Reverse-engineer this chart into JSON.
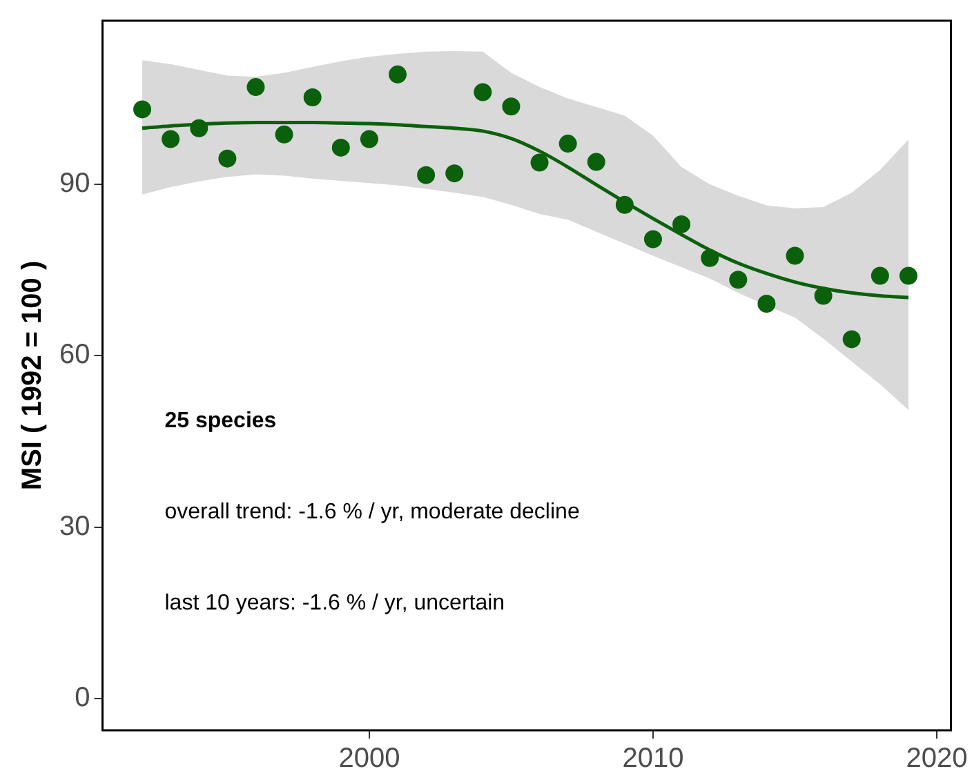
{
  "chart_data": {
    "type": "scatter",
    "ylabel": "MSI ( 1992 = 100 )",
    "x": [
      1992,
      1993,
      1994,
      1995,
      1996,
      1997,
      1998,
      1999,
      2000,
      2001,
      2002,
      2003,
      2004,
      2005,
      2006,
      2007,
      2008,
      2009,
      2010,
      2011,
      2012,
      2013,
      2014,
      2015,
      2016,
      2017,
      2018,
      2019
    ],
    "series": [
      {
        "color": "#0b610b",
        "marker": "circle",
        "values": [
          103.1,
          97.9,
          99.8,
          94.5,
          107,
          98.7,
          105.2,
          96.4,
          97.9,
          109.2,
          91.6,
          91.9,
          106.1,
          103.6,
          93.8,
          97.1,
          93.9,
          86.4,
          80.4,
          83.0,
          77.1,
          73.3,
          69.1,
          77.5,
          70.5,
          62.9,
          74.0,
          74.0
        ]
      },
      {
        "type": "line",
        "color": "#0b610b",
        "marker": "none",
        "line_style": "solid",
        "values": [
          99.8,
          100.2,
          100.5,
          100.7,
          100.8,
          100.8,
          100.8,
          100.7,
          100.6,
          100.4,
          100.1,
          99.8,
          99.3,
          98.0,
          95.8,
          93.0,
          89.9,
          86.9,
          84.0,
          81.2,
          78.5,
          76.2,
          74.4,
          72.9,
          71.8,
          71.0,
          70.5,
          70.2
        ],
        "lower": [
          88.2,
          89.5,
          90.5,
          91.3,
          91.7,
          91.5,
          91.0,
          90.6,
          90.2,
          89.8,
          89.2,
          88.5,
          87.8,
          86.4,
          84.8,
          83.8,
          81.7,
          79.6,
          77.5,
          75.5,
          73.5,
          71.0,
          68.8,
          66.7,
          63.0,
          59.0,
          55.0,
          50.5
        ],
        "upper": [
          111.7,
          111.0,
          110.0,
          109.0,
          108.8,
          109.5,
          110.5,
          111.5,
          112.3,
          112.8,
          113.2,
          113.3,
          113.2,
          109.5,
          107.0,
          105.0,
          103.5,
          102.0,
          98.5,
          93.0,
          90.0,
          88.0,
          86.3,
          85.8,
          86.0,
          88.5,
          92.5,
          97.8
        ]
      }
    ],
    "xlim": [
      1990.6,
      2020.5
    ],
    "xticks": [
      2000,
      2010,
      2020
    ],
    "ylim": [
      -5.5,
      118.6
    ],
    "yticks": [
      0,
      30,
      60,
      90
    ],
    "grid": false,
    "legend": false,
    "annotations": [
      "25 species",
      "overall trend: -1.6 % / yr, moderate decline",
      "last 10 years: -1.6 % / yr, uncertain"
    ]
  }
}
